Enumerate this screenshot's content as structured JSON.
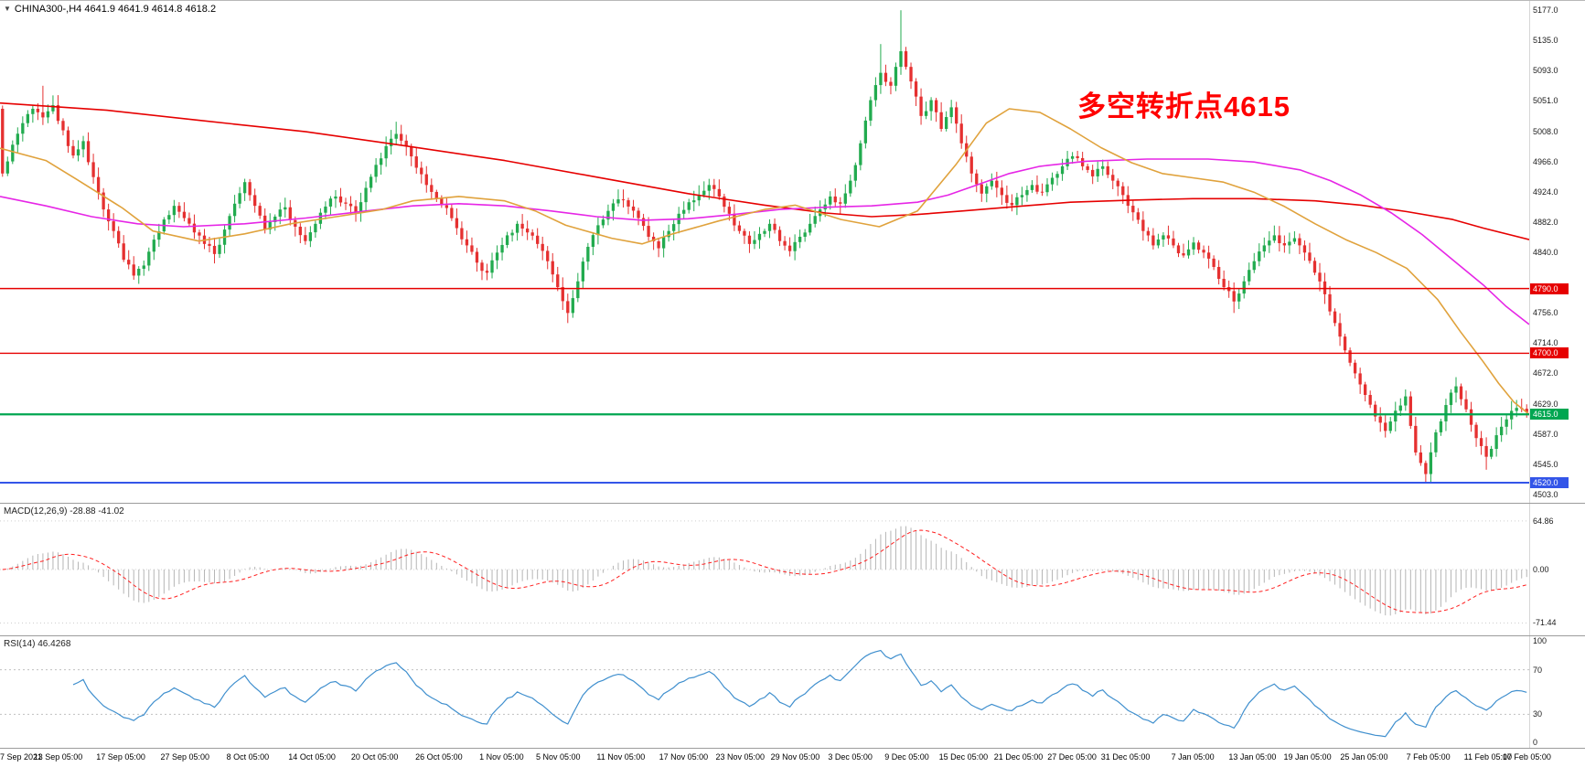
{
  "header": {
    "collapse_icon": "▼",
    "symbol_info": "CHINA300-,H4  4641.9 4641.9 4614.8 4618.2"
  },
  "annotation": {
    "text": "多空转折点4615",
    "color": "#ff0000"
  },
  "colors": {
    "candle_up": "#22ab4f",
    "candle_down": "#e53030",
    "ma_fast": "#e0a23c",
    "ma_mid": "#e626e6",
    "ma_slow": "#e60000",
    "macd_hist": "#b5b5b5",
    "macd_signal": "#ff2020",
    "rsi_line": "#3f8fce",
    "level_red": "#e60000",
    "level_green": "#00a651",
    "level_blue": "#3355e8"
  },
  "chart_data": {
    "type": "candlestick",
    "title": "CHINA300- H4",
    "main": {
      "price_min": 4492,
      "price_max": 5190,
      "axis_ticks": [
        {
          "label": "5177.0",
          "value": 5177
        },
        {
          "label": "5135.0",
          "value": 5135
        },
        {
          "label": "5093.0",
          "value": 5093
        },
        {
          "label": "5051.0",
          "value": 5051
        },
        {
          "label": "5008.0",
          "value": 5008
        },
        {
          "label": "4966.0",
          "value": 4966
        },
        {
          "label": "4924.0",
          "value": 4924
        },
        {
          "label": "4882.0",
          "value": 4882
        },
        {
          "label": "4840.0",
          "value": 4840
        },
        {
          "label": "4756.0",
          "value": 4756
        },
        {
          "label": "4714.0",
          "value": 4714
        },
        {
          "label": "4672.0",
          "value": 4672
        },
        {
          "label": "4629.0",
          "value": 4629
        },
        {
          "label": "4587.0",
          "value": 4587
        },
        {
          "label": "4545.0",
          "value": 4545
        },
        {
          "label": "4503.0",
          "value": 4503
        }
      ],
      "levels": [
        {
          "price": 4790,
          "label": "4790.0",
          "colorKey": "level_red",
          "width": 1.4
        },
        {
          "price": 4700,
          "label": "4700.0",
          "colorKey": "level_red",
          "width": 1.4
        },
        {
          "price": 4615,
          "label": "4615.0",
          "colorKey": "level_green",
          "width": 2.2
        },
        {
          "price": 4520,
          "label": "4520.0",
          "colorKey": "level_blue",
          "width": 2
        }
      ],
      "first_open": 5040,
      "anchor_closes": [
        4950,
        4990,
        5020,
        5040,
        5028,
        5045,
        5010,
        4975,
        4995,
        4945,
        4900,
        4870,
        4830,
        4808,
        4822,
        4858,
        4886,
        4905,
        4888,
        4868,
        4852,
        4838,
        4872,
        4908,
        4938,
        4905,
        4872,
        4890,
        4903,
        4876,
        4856,
        4880,
        4904,
        4918,
        4908,
        4896,
        4930,
        4962,
        4988,
        5005,
        4988,
        4958,
        4934,
        4916,
        4902,
        4874,
        4850,
        4826,
        4812,
        4840,
        4864,
        4880,
        4868,
        4852,
        4828,
        4792,
        4756,
        4800,
        4848,
        4878,
        4898,
        4914,
        4904,
        4888,
        4862,
        4846,
        4870,
        4894,
        4910,
        4920,
        4934,
        4918,
        4894,
        4870,
        4852,
        4866,
        4880,
        4856,
        4842,
        4862,
        4880,
        4900,
        4918,
        4908,
        4940,
        4992,
        5052,
        5090,
        5072,
        5120,
        5078,
        5030,
        5052,
        5012,
        5042,
        4992,
        4950,
        4922,
        4940,
        4920,
        4906,
        4920,
        4934,
        4924,
        4944,
        4960,
        4974,
        4960,
        4946,
        4960,
        4940,
        4920,
        4896,
        4870,
        4850,
        4864,
        4850,
        4836,
        4854,
        4840,
        4820,
        4792,
        4772,
        4800,
        4828,
        4850,
        4864,
        4850,
        4860,
        4840,
        4812,
        4782,
        4742,
        4704,
        4672,
        4642,
        4612,
        4592,
        4620,
        4640,
        4562,
        4532,
        4590,
        4628,
        4654,
        4622,
        4582,
        4556,
        4586,
        4608,
        4624,
        4618.2
      ],
      "wick_overrides": {
        "4": {
          "high": 5072
        },
        "39": {
          "high": 5022
        },
        "56": {
          "low": 4742
        },
        "87": {
          "high": 5130
        },
        "89": {
          "high": 5177
        },
        "122": {
          "low": 4756
        },
        "141": {
          "low": 4520
        },
        "147": {
          "low": 4538
        }
      },
      "moving_averages": [
        {
          "name": "ma-slow",
          "colorKey": "ma_slow",
          "points": [
            [
              0,
              5048
            ],
            [
              0.07,
              5038
            ],
            [
              0.13,
              5024
            ],
            [
              0.2,
              5008
            ],
            [
              0.26,
              4990
            ],
            [
              0.33,
              4968
            ],
            [
              0.39,
              4945
            ],
            [
              0.45,
              4922
            ],
            [
              0.5,
              4906
            ],
            [
              0.54,
              4895
            ],
            [
              0.57,
              4890
            ],
            [
              0.6,
              4893
            ],
            [
              0.63,
              4898
            ],
            [
              0.67,
              4905
            ],
            [
              0.7,
              4910
            ],
            [
              0.74,
              4913
            ],
            [
              0.78,
              4915
            ],
            [
              0.82,
              4915
            ],
            [
              0.86,
              4912
            ],
            [
              0.89,
              4906
            ],
            [
              0.92,
              4897
            ],
            [
              0.95,
              4886
            ],
            [
              0.97,
              4874
            ],
            [
              1,
              4858
            ]
          ]
        },
        {
          "name": "ma-mid",
          "colorKey": "ma_mid",
          "points": [
            [
              0,
              4918
            ],
            [
              0.03,
              4905
            ],
            [
              0.06,
              4890
            ],
            [
              0.09,
              4880
            ],
            [
              0.12,
              4876
            ],
            [
              0.16,
              4880
            ],
            [
              0.2,
              4888
            ],
            [
              0.24,
              4898
            ],
            [
              0.27,
              4905
            ],
            [
              0.3,
              4908
            ],
            [
              0.33,
              4905
            ],
            [
              0.36,
              4898
            ],
            [
              0.39,
              4890
            ],
            [
              0.42,
              4885
            ],
            [
              0.45,
              4887
            ],
            [
              0.48,
              4893
            ],
            [
              0.51,
              4900
            ],
            [
              0.54,
              4903
            ],
            [
              0.57,
              4905
            ],
            [
              0.6,
              4910
            ],
            [
              0.62,
              4920
            ],
            [
              0.64,
              4935
            ],
            [
              0.66,
              4950
            ],
            [
              0.68,
              4960
            ],
            [
              0.71,
              4967
            ],
            [
              0.75,
              4970
            ],
            [
              0.79,
              4970
            ],
            [
              0.82,
              4966
            ],
            [
              0.85,
              4955
            ],
            [
              0.87,
              4940
            ],
            [
              0.89,
              4920
            ],
            [
              0.91,
              4895
            ],
            [
              0.93,
              4865
            ],
            [
              0.95,
              4830
            ],
            [
              0.97,
              4795
            ],
            [
              0.985,
              4765
            ],
            [
              1,
              4740
            ]
          ]
        },
        {
          "name": "ma-fast",
          "colorKey": "ma_fast",
          "points": [
            [
              0,
              4985
            ],
            [
              0.03,
              4968
            ],
            [
              0.05,
              4942
            ],
            [
              0.08,
              4902
            ],
            [
              0.1,
              4870
            ],
            [
              0.13,
              4856
            ],
            [
              0.16,
              4866
            ],
            [
              0.19,
              4880
            ],
            [
              0.22,
              4890
            ],
            [
              0.25,
              4900
            ],
            [
              0.27,
              4912
            ],
            [
              0.3,
              4918
            ],
            [
              0.33,
              4912
            ],
            [
              0.35,
              4898
            ],
            [
              0.37,
              4878
            ],
            [
              0.4,
              4860
            ],
            [
              0.42,
              4852
            ],
            [
              0.44,
              4866
            ],
            [
              0.47,
              4884
            ],
            [
              0.5,
              4900
            ],
            [
              0.52,
              4906
            ],
            [
              0.55,
              4886
            ],
            [
              0.575,
              4876
            ],
            [
              0.6,
              4898
            ],
            [
              0.625,
              4962
            ],
            [
              0.645,
              5020
            ],
            [
              0.66,
              5040
            ],
            [
              0.68,
              5035
            ],
            [
              0.7,
              5012
            ],
            [
              0.72,
              4986
            ],
            [
              0.74,
              4965
            ],
            [
              0.76,
              4950
            ],
            [
              0.78,
              4944
            ],
            [
              0.8,
              4938
            ],
            [
              0.82,
              4924
            ],
            [
              0.84,
              4904
            ],
            [
              0.86,
              4880
            ],
            [
              0.88,
              4858
            ],
            [
              0.9,
              4840
            ],
            [
              0.92,
              4818
            ],
            [
              0.94,
              4775
            ],
            [
              0.955,
              4730
            ],
            [
              0.97,
              4688
            ],
            [
              0.98,
              4658
            ],
            [
              0.99,
              4632
            ],
            [
              1,
              4615
            ]
          ]
        }
      ]
    },
    "macd": {
      "label": "MACD(12,26,9) -28.88 -41.02",
      "fast": 12,
      "slow": 26,
      "signal": 9,
      "scale_max": 88,
      "ticks": [
        {
          "label": "64.86",
          "value": 64.86
        },
        {
          "label": "0.00",
          "value": 0
        },
        {
          "label": "-71.44",
          "value": -71.44
        }
      ]
    },
    "rsi": {
      "label": "RSI(14) 46.4268",
      "period": 14,
      "levels": [
        70,
        30
      ],
      "ticks": [
        {
          "label": "100",
          "value": 100
        },
        {
          "label": "70",
          "value": 70
        },
        {
          "label": "30",
          "value": 30
        },
        {
          "label": "0",
          "value": 0
        }
      ]
    },
    "timeline": [
      {
        "label": "7 Sep 2021",
        "pos": 0
      },
      {
        "label": "13 Sep 05:00",
        "pos": 0.038
      },
      {
        "label": "17 Sep 05:00",
        "pos": 0.079
      },
      {
        "label": "27 Sep 05:00",
        "pos": 0.121
      },
      {
        "label": "8 Oct 05:00",
        "pos": 0.162
      },
      {
        "label": "14 Oct 05:00",
        "pos": 0.204
      },
      {
        "label": "20 Oct 05:00",
        "pos": 0.245
      },
      {
        "label": "26 Oct 05:00",
        "pos": 0.287
      },
      {
        "label": "1 Nov 05:00",
        "pos": 0.328
      },
      {
        "label": "5 Nov 05:00",
        "pos": 0.365
      },
      {
        "label": "11 Nov 05:00",
        "pos": 0.406
      },
      {
        "label": "17 Nov 05:00",
        "pos": 0.447
      },
      {
        "label": "23 Nov 05:00",
        "pos": 0.484
      },
      {
        "label": "29 Nov 05:00",
        "pos": 0.52
      },
      {
        "label": "3 Dec 05:00",
        "pos": 0.556
      },
      {
        "label": "9 Dec 05:00",
        "pos": 0.593
      },
      {
        "label": "15 Dec 05:00",
        "pos": 0.63
      },
      {
        "label": "21 Dec 05:00",
        "pos": 0.666
      },
      {
        "label": "27 Dec 05:00",
        "pos": 0.701
      },
      {
        "label": "31 Dec 05:00",
        "pos": 0.736
      },
      {
        "label": "7 Jan 05:00",
        "pos": 0.78
      },
      {
        "label": "13 Jan 05:00",
        "pos": 0.819
      },
      {
        "label": "19 Jan 05:00",
        "pos": 0.855
      },
      {
        "label": "25 Jan 05:00",
        "pos": 0.892
      },
      {
        "label": "7 Feb 05:00",
        "pos": 0.934
      },
      {
        "label": "11 Feb 05:00",
        "pos": 0.973
      },
      {
        "label": "17 Feb 05:00",
        "pos": 1
      }
    ]
  }
}
